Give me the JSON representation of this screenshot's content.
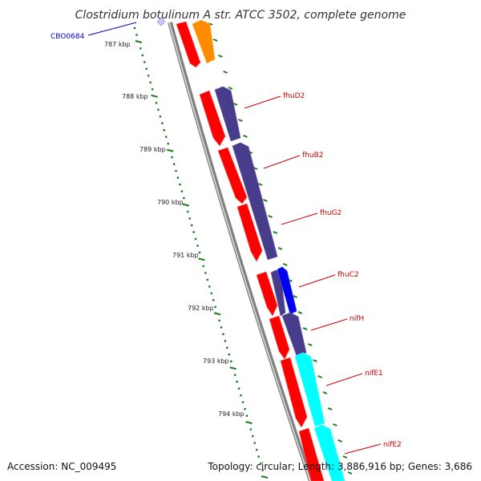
{
  "title": "Clostridium botulinum A str. ATCC 3502, complete genome",
  "accession": "Accession: NC_009495",
  "summary": "Topology: circular; Length: 3,886,916 bp; Genes: 3,686",
  "colors": {
    "forward_feature": "#ff0000",
    "reverse_feature_orange": "#ff8c00",
    "reverse_feature_purple": "#483d8b",
    "reverse_feature_blue": "#0000ee",
    "reverse_feature_cyan": "#00ffff",
    "label_red": "#cc0000",
    "label_blue": "#0000cc",
    "ticks": "#008000",
    "backbone": "#808080"
  },
  "kbp_ticks": [
    "787 kbp",
    "788 kbp",
    "789 kbp",
    "790 kbp",
    "791 kbp",
    "792 kbp",
    "793 kbp",
    "794 kbp"
  ],
  "gene_labels": [
    {
      "name": "CBO0684",
      "color": "#0000cc"
    },
    {
      "name": "fhuD2",
      "color": "#cc0000"
    },
    {
      "name": "fhuB2",
      "color": "#cc0000"
    },
    {
      "name": "fhuG2",
      "color": "#cc0000"
    },
    {
      "name": "fhuC2",
      "color": "#cc0000"
    },
    {
      "name": "nifH",
      "color": "#cc0000"
    },
    {
      "name": "nifE1",
      "color": "#cc0000"
    },
    {
      "name": "nifE2",
      "color": "#cc0000"
    }
  ]
}
